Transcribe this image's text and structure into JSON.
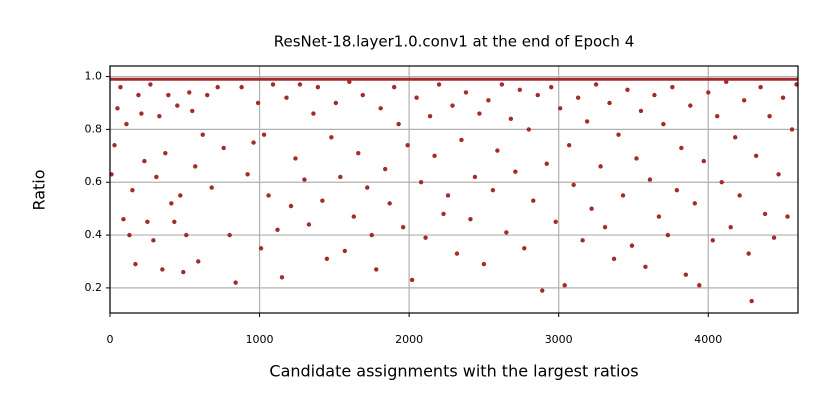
{
  "chart_data": {
    "type": "scatter",
    "title": "ResNet-18.layer1.0.conv1 at the end of Epoch 4",
    "x_label": "Candidate assignments with the largest ratios",
    "y_label": "Ratio",
    "xlim": [
      0,
      4600
    ],
    "ylim": [
      0.105,
      1.04
    ],
    "xticks": [
      0,
      1000,
      2000,
      3000,
      4000
    ],
    "yticks": [
      0.2,
      0.4,
      0.6,
      0.8,
      {
        "value": 1,
        "label": "1.0"
      }
    ],
    "grid": true,
    "series": [
      {
        "color": "#a52a2a",
        "mode": "markers",
        "x": [
          10,
          30,
          50,
          70,
          90,
          110,
          130,
          150,
          170,
          190,
          210,
          230,
          250,
          270,
          290,
          310,
          330,
          350,
          370,
          390,
          410,
          430,
          450,
          470,
          490,
          510,
          530,
          550,
          570,
          590,
          620,
          650,
          680,
          720,
          760,
          800,
          840,
          880,
          920,
          960,
          990,
          1010,
          1030,
          1060,
          1090,
          1120,
          1150,
          1180,
          1210,
          1240,
          1270,
          1300,
          1330,
          1360,
          1390,
          1420,
          1450,
          1480,
          1510,
          1540,
          1570,
          1600,
          1630,
          1660,
          1690,
          1720,
          1750,
          1780,
          1810,
          1840,
          1870,
          1900,
          1930,
          1960,
          1990,
          2020,
          2050,
          2080,
          2110,
          2140,
          2170,
          2200,
          2230,
          2260,
          2290,
          2320,
          2350,
          2380,
          2410,
          2440,
          2470,
          2500,
          2530,
          2560,
          2590,
          2620,
          2650,
          2680,
          2710,
          2740,
          2770,
          2800,
          2830,
          2860,
          2890,
          2920,
          2950,
          2980,
          3010,
          3040,
          3070,
          3100,
          3130,
          3160,
          3190,
          3220,
          3250,
          3280,
          3310,
          3340,
          3370,
          3400,
          3430,
          3460,
          3490,
          3520,
          3550,
          3580,
          3610,
          3640,
          3670,
          3700,
          3730,
          3760,
          3790,
          3820,
          3850,
          3880,
          3910,
          3940,
          3970,
          4000,
          4030,
          4060,
          4090,
          4120,
          4150,
          4180,
          4210,
          4240,
          4270,
          4290,
          4320,
          4350,
          4380,
          4410,
          4440,
          4470,
          4500,
          4530,
          4560,
          4590
        ],
        "values": [
          0.63,
          0.74,
          0.88,
          0.96,
          0.46,
          0.82,
          0.4,
          0.57,
          0.29,
          0.93,
          0.86,
          0.68,
          0.45,
          0.97,
          0.38,
          0.62,
          0.85,
          0.27,
          0.71,
          0.93,
          0.52,
          0.45,
          0.89,
          0.55,
          0.26,
          0.4,
          0.94,
          0.87,
          0.66,
          0.3,
          0.78,
          0.93,
          0.58,
          0.96,
          0.73,
          0.4,
          0.22,
          0.96,
          0.63,
          0.75,
          0.9,
          0.35,
          0.78,
          0.55,
          0.97,
          0.42,
          0.24,
          0.92,
          0.51,
          0.69,
          0.97,
          0.61,
          0.44,
          0.86,
          0.96,
          0.53,
          0.31,
          0.77,
          0.9,
          0.62,
          0.34,
          0.98,
          0.47,
          0.71,
          0.93,
          0.58,
          0.4,
          0.27,
          0.88,
          0.65,
          0.52,
          0.96,
          0.82,
          0.43,
          0.74,
          0.23,
          0.92,
          0.6,
          0.39,
          0.85,
          0.7,
          0.97,
          0.48,
          0.55,
          0.89,
          0.33,
          0.76,
          0.94,
          0.46,
          0.62,
          0.86,
          0.29,
          0.91,
          0.57,
          0.72,
          0.97,
          0.41,
          0.84,
          0.64,
          0.95,
          0.35,
          0.8,
          0.53,
          0.93,
          0.19,
          0.67,
          0.96,
          0.45,
          0.88,
          0.21,
          0.74,
          0.59,
          0.92,
          0.38,
          0.83,
          0.5,
          0.97,
          0.66,
          0.43,
          0.9,
          0.31,
          0.78,
          0.55,
          0.95,
          0.36,
          0.69,
          0.87,
          0.28,
          0.61,
          0.93,
          0.47,
          0.82,
          0.4,
          0.96,
          0.57,
          0.73,
          0.25,
          0.89,
          0.52,
          0.21,
          0.68,
          0.94,
          0.38,
          0.85,
          0.6,
          0.98,
          0.43,
          0.77,
          0.55,
          0.91,
          0.33,
          0.15,
          0.7,
          0.96,
          0.48,
          0.85,
          0.39,
          0.63,
          0.92,
          0.47,
          0.8,
          0.97
        ]
      },
      {
        "color": "#a52a2a",
        "mode": "line",
        "x": [
          0,
          4600
        ],
        "values": [
          0.99,
          0.99
        ]
      }
    ]
  }
}
